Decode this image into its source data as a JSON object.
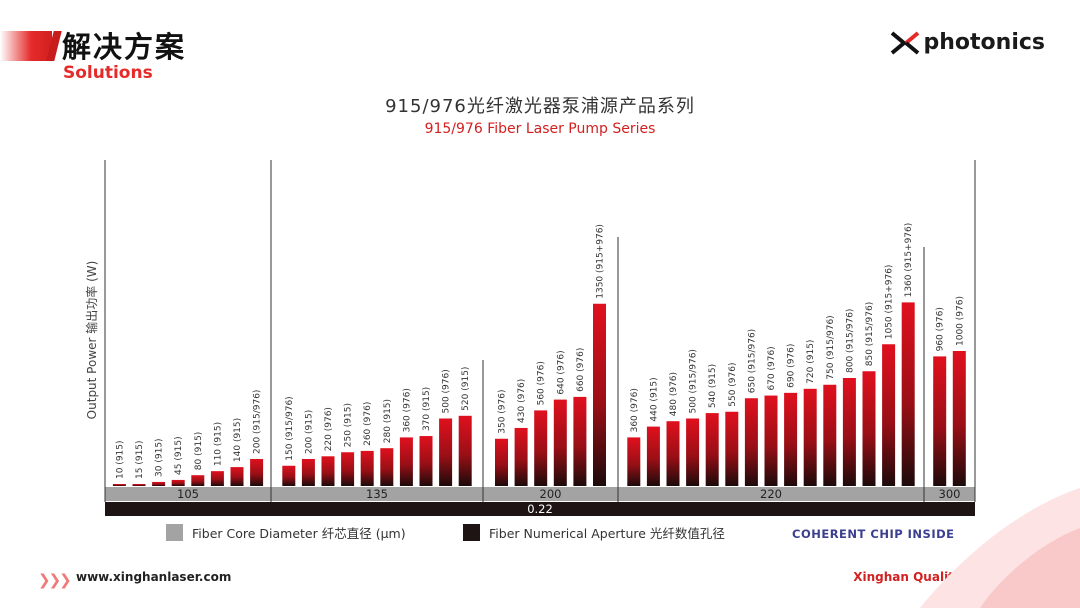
{
  "header": {
    "title_cn": "解决方案",
    "title_en": "Solutions",
    "logo_text": "photonics"
  },
  "chart_data": {
    "type": "bar",
    "title": "915/976光纤激光器泵浦源产品系列",
    "subtitle": "915/976 Fiber Laser Pump Series",
    "ylabel": "Output Power  输出功率 (W)",
    "ylim": [
      0,
      1550
    ],
    "groups": [
      {
        "core": "105",
        "labels": [
          "10 (915)",
          "15 (915)",
          "30 (915)",
          "45 (915)",
          "80 (915)",
          "110 (915)",
          "140 (915)",
          "200 (915/976)"
        ],
        "values": [
          10,
          15,
          30,
          45,
          80,
          110,
          140,
          200
        ]
      },
      {
        "core": "135",
        "labels": [
          "150 (915/976)",
          "200 (915)",
          "220 (976)",
          "250 (915)",
          "260 (976)",
          "280 (915)",
          "360 (976)",
          "370 (915)",
          "500 (976)",
          "520 (915)"
        ],
        "values": [
          150,
          200,
          220,
          250,
          260,
          280,
          360,
          370,
          500,
          520
        ]
      },
      {
        "core": "200",
        "labels": [
          "350 (976)",
          "430 (976)",
          "560 (976)",
          "640 (976)",
          "660 (976)",
          "1350 (915+976)"
        ],
        "values": [
          350,
          430,
          560,
          640,
          660,
          1350
        ]
      },
      {
        "core": "220",
        "labels": [
          "360 (976)",
          "440 (915)",
          "480 (976)",
          "500 (915/976)",
          "540 (915)",
          "550 (976)",
          "650 (915/976)",
          "670 (976)",
          "690 (976)",
          "720 (915)",
          "750 (915/976)",
          "800 (915/976)",
          "850 (915/976)",
          "1050 (915+976)",
          "1360 (915+976)"
        ],
        "values": [
          360,
          440,
          480,
          500,
          540,
          550,
          650,
          670,
          690,
          720,
          750,
          800,
          850,
          1050,
          1360
        ]
      },
      {
        "core": "300",
        "labels": [
          "960 (976)",
          "1000 (976)"
        ],
        "values": [
          960,
          1000
        ]
      }
    ],
    "na_value": "0.22",
    "legend": [
      {
        "label": "Fiber Core Diameter  纤芯直径 (μm)",
        "color": "#a3a3a3"
      },
      {
        "label": "Fiber Numerical Aperture  光纤数值孔径",
        "color": "#1e1414"
      }
    ]
  },
  "badge": "COHERENT CHIP INSIDE",
  "footer": {
    "url": "www.xinghanlaser.com",
    "slogan": "Xinghan Quality, Rock Solid"
  }
}
